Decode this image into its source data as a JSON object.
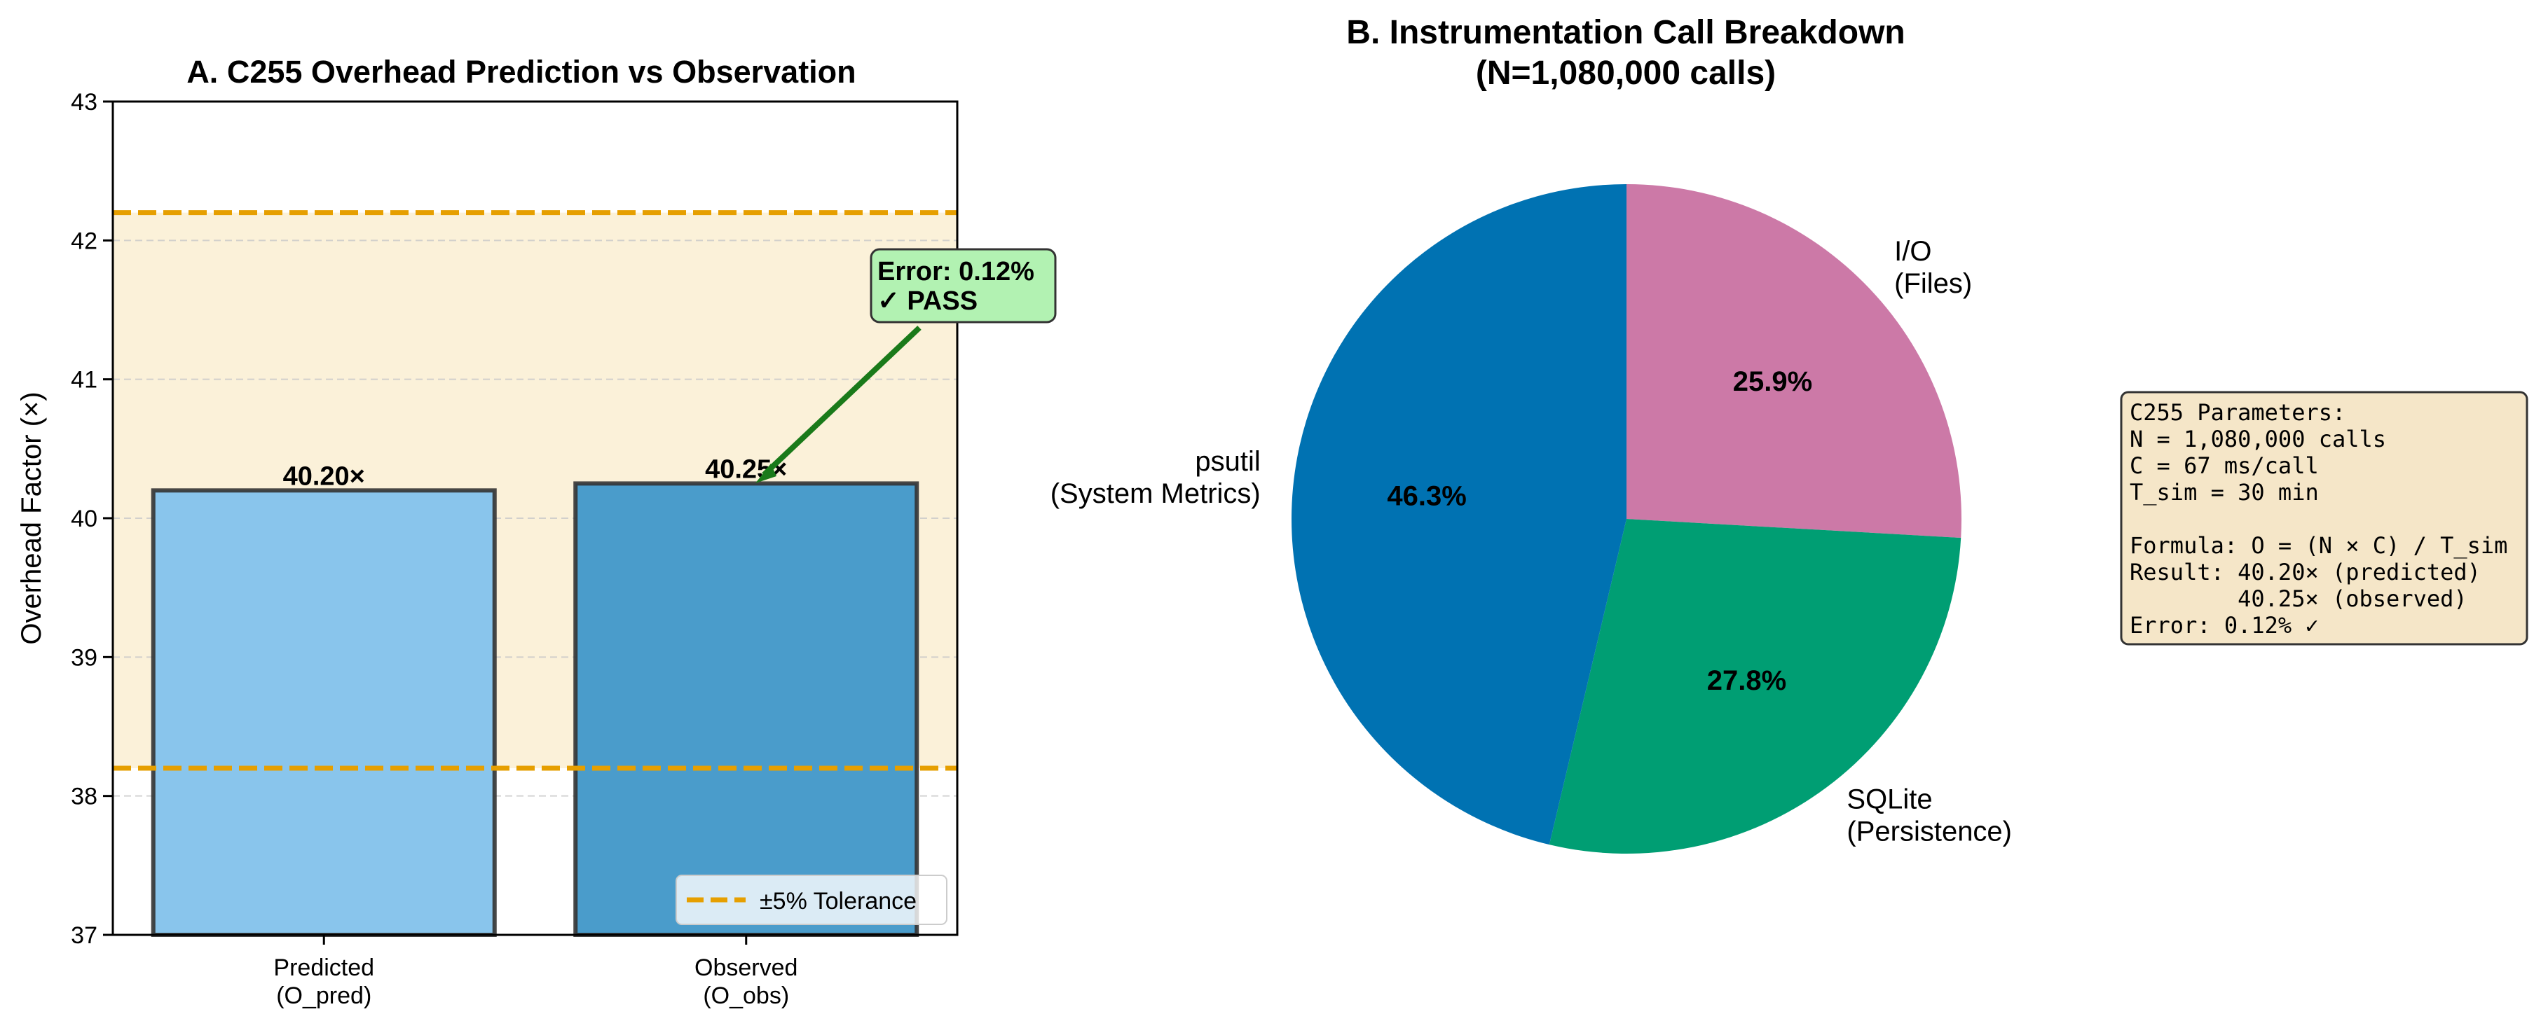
{
  "chart_data": [
    {
      "type": "bar",
      "title": "A. C255 Overhead Prediction vs Observation",
      "ylabel": "Overhead Factor (×)",
      "xlabel": "",
      "ylim": [
        37,
        43
      ],
      "yticks": [
        "37",
        "38",
        "39",
        "40",
        "41",
        "42",
        "43"
      ],
      "grid": "horizontal dashed",
      "categories": [
        "Predicted\n(O_pred)",
        "Observed\n(O_obs)"
      ],
      "values": [
        40.2,
        40.25
      ],
      "value_labels": [
        "40.20×",
        "40.25×"
      ],
      "bar_colors": [
        "#89c5ec",
        "#4a9ccb"
      ],
      "tolerance_band": [
        38.2,
        42.2
      ],
      "tolerance_color": "#e69f00",
      "legend": {
        "placement": "lower-right",
        "entries": [
          "±5% Tolerance"
        ]
      },
      "annotation": {
        "text_line1": "Error: 0.12%",
        "text_line2": "✓ PASS",
        "color": "#1a8a1a",
        "box_fill": "#b2f2b2",
        "arrow_target": [
          1,
          40.25
        ]
      }
    },
    {
      "type": "pie",
      "title_line1": "B. Instrumentation Call Breakdown",
      "title_line2": "(N=1,080,000 calls)",
      "slices": [
        {
          "label_line1": "I/O",
          "label_line2": "(Files)",
          "value": 25.9,
          "pct_label": "25.9%",
          "color": "#cc79a7"
        },
        {
          "label_line1": "SQLite",
          "label_line2": "(Persistence)",
          "value": 27.8,
          "pct_label": "27.8%",
          "color": "#009e73"
        },
        {
          "label_line1": "psutil",
          "label_line2": "(System Metrics)",
          "value": 46.3,
          "pct_label": "46.3%",
          "color": "#0072b2"
        }
      ]
    }
  ],
  "params_box": {
    "lines": [
      "C255 Parameters:",
      "N = 1,080,000 calls",
      "C = 67 ms/call",
      "T_sim = 30 min",
      "",
      "Formula: O = (N × C) / T_sim",
      "Result: 40.20× (predicted)",
      "        40.25× (observed)",
      "Error: 0.12% ✓"
    ]
  }
}
